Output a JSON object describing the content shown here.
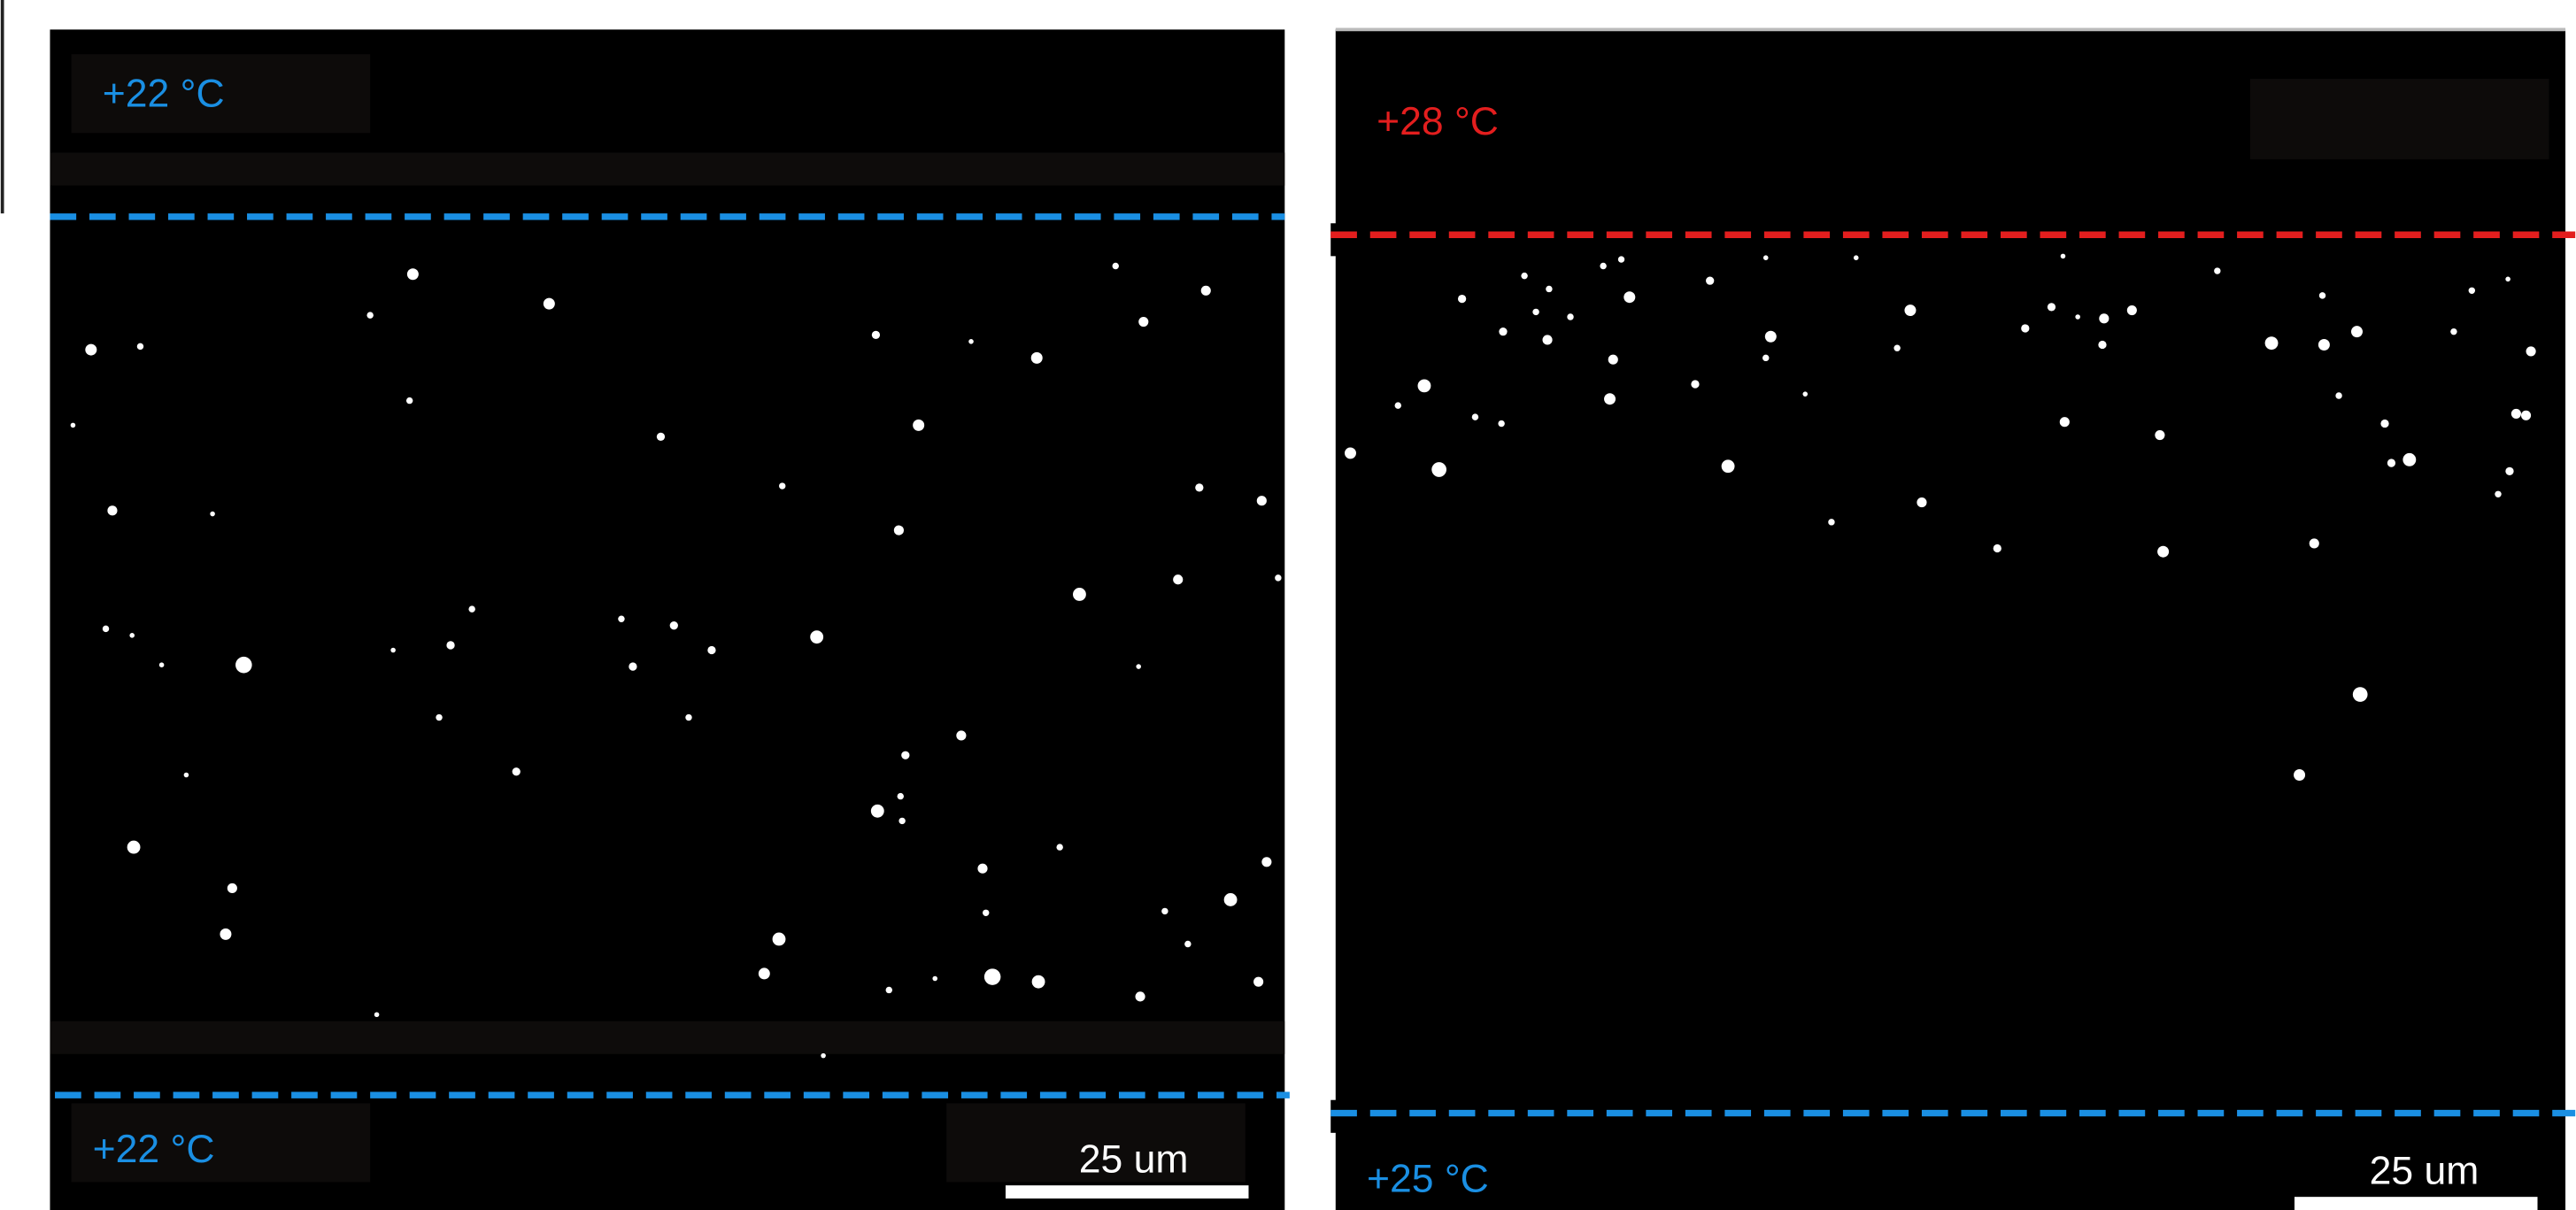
{
  "panels": [
    {
      "top_label": "+22 °C",
      "bottom_label": "+22 °C",
      "scale_bar": "25 um"
    },
    {
      "top_label": "+28 °C",
      "bottom_label": "+25 °C",
      "scale_bar": "25 um"
    }
  ]
}
